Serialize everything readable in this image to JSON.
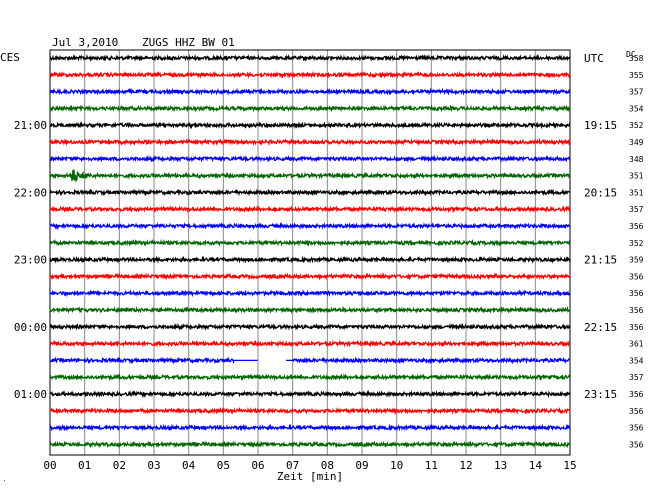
{
  "header": {
    "date": "Jul 3,2010",
    "station": "ZUGS HHZ BW 01"
  },
  "left_tz": "CES",
  "right_tz": "UTC",
  "dc_label": "DC",
  "corner_mark": "′",
  "chart_data": {
    "type": "line",
    "title": "Jul 3,2010  ZUGS HHZ BW 01",
    "xlabel": "Zeit [min]",
    "xlim": [
      0,
      15
    ],
    "x_ticks": [
      "00",
      "01",
      "02",
      "03",
      "04",
      "05",
      "06",
      "07",
      "08",
      "09",
      "10",
      "11",
      "12",
      "13",
      "14",
      "15"
    ],
    "row_count": 24,
    "row_colors": [
      "#000000",
      "#ff0000",
      "#0000ff",
      "#006600"
    ],
    "left_hour_labels": [
      {
        "row": 4,
        "label": "21:00"
      },
      {
        "row": 8,
        "label": "22:00"
      },
      {
        "row": 12,
        "label": "23:00"
      },
      {
        "row": 16,
        "label": "00:00"
      },
      {
        "row": 20,
        "label": "01:00"
      }
    ],
    "right_hour_labels": [
      {
        "row": 0,
        "label": "UTC"
      },
      {
        "row": 4,
        "label": "19:15"
      },
      {
        "row": 8,
        "label": "20:15"
      },
      {
        "row": 12,
        "label": "21:15"
      },
      {
        "row": 16,
        "label": "22:15"
      },
      {
        "row": 20,
        "label": "23:15"
      }
    ],
    "dc_values": [
      "358",
      "355",
      "357",
      "354",
      "352",
      "349",
      "348",
      "351",
      "351",
      "357",
      "356",
      "352",
      "359",
      "356",
      "356",
      "356",
      "356",
      "361",
      "354",
      "357",
      "356",
      "356",
      "356",
      "356"
    ],
    "events": [
      {
        "row": 7,
        "start_min": 0.6,
        "amplitude": "large"
      }
    ],
    "gaps": [
      {
        "row": 18,
        "start_min": 5.3,
        "end_min": 6.0
      },
      {
        "row": 18,
        "start_min": 6.8,
        "end_min": 7.0
      }
    ],
    "dropouts": [
      {
        "row": 18,
        "start_min": 6.0,
        "end_min": 6.8
      }
    ]
  }
}
